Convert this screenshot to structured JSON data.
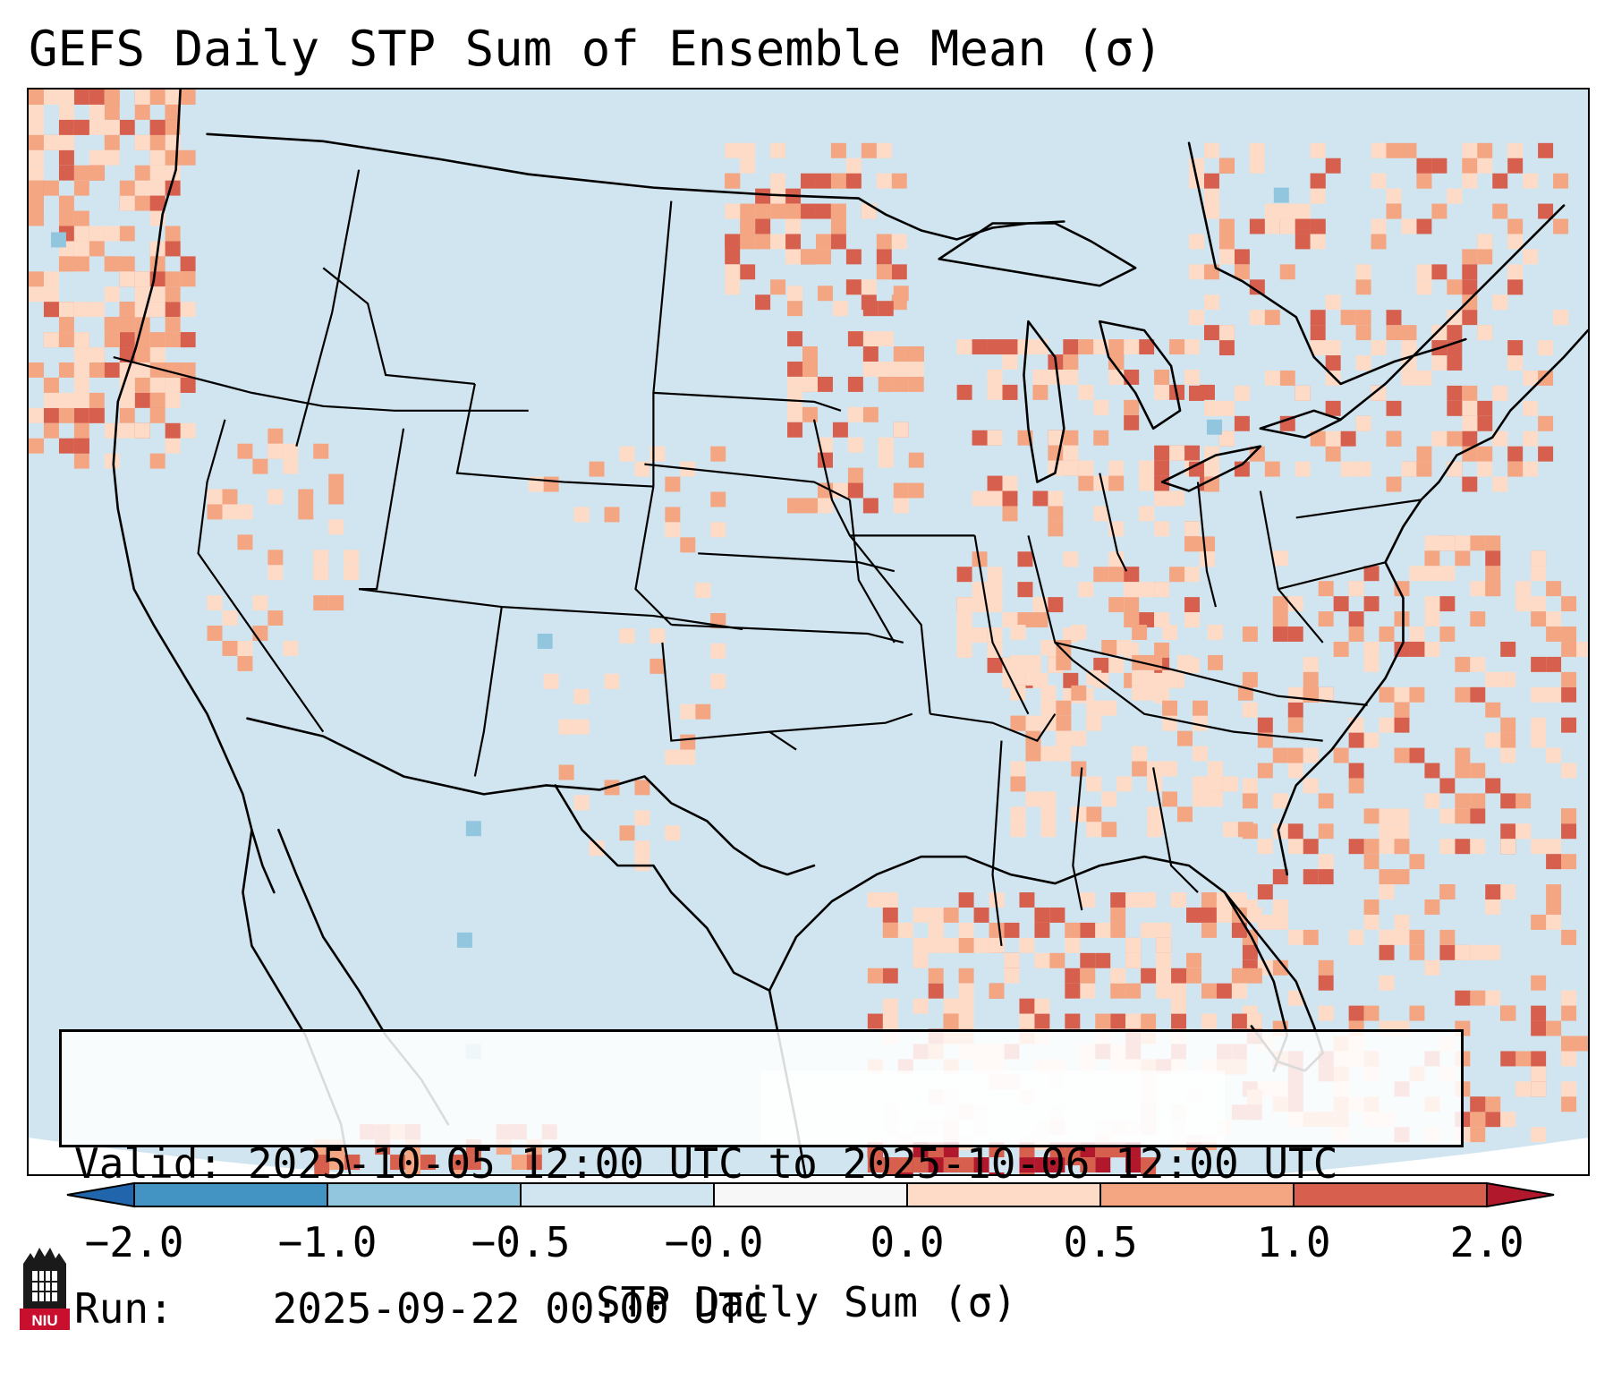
{
  "title": "GEFS Daily STP Sum of Ensemble Mean (σ)",
  "info": {
    "valid_label": "Valid:",
    "valid_value": "2025-10-05 12:00 UTC to 2025-10-06 12:00 UTC",
    "run_label": "Run:",
    "run_value": "2025-09-22 00:00 UTC"
  },
  "colorbar": {
    "label": "STP Daily Sum (σ)",
    "ticks": [
      "−2.0",
      "−1.0",
      "−0.5",
      "−0.0",
      "0.0",
      "0.5",
      "1.0",
      "2.0"
    ],
    "colors": {
      "under": "#2166ac",
      "c1": "#4393c3",
      "c2": "#92c5de",
      "c3": "#d1e5f0",
      "c4": "#f7f7f7",
      "c5": "#fddbc7",
      "c6": "#f4a582",
      "c7": "#d6604d",
      "over": "#b2182b"
    }
  },
  "map": {
    "background_color": "#d1e5f0",
    "projection": "Lambert conformal (CONUS)",
    "features": [
      "coastlines",
      "country-borders",
      "state-borders",
      "great-lakes"
    ]
  },
  "logo": {
    "text": "NIU",
    "icon": "niu-castle-icon"
  }
}
